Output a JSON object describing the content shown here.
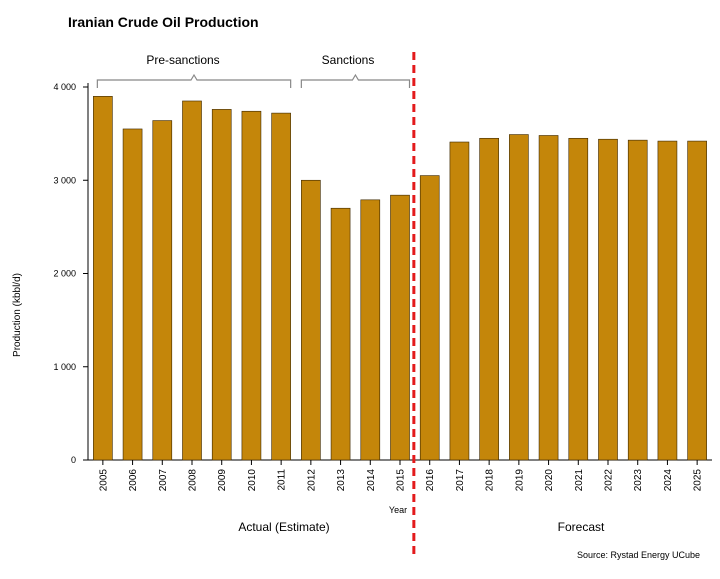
{
  "chart_data": {
    "type": "bar",
    "title": "Iranian Crude Oil Production",
    "ylabel": "Production (kbbl/d)",
    "xlabel": "Year",
    "ylim": [
      0,
      4000
    ],
    "yticks": [
      0,
      1000,
      2000,
      3000,
      4000
    ],
    "ytick_labels": [
      "0",
      "1 000",
      "2 000",
      "3 000",
      "4 000"
    ],
    "categories": [
      "2005",
      "2006",
      "2007",
      "2008",
      "2009",
      "2010",
      "2011",
      "2012",
      "2013",
      "2014",
      "2015",
      "2016",
      "2017",
      "2018",
      "2019",
      "2020",
      "2021",
      "2022",
      "2023",
      "2024",
      "2025"
    ],
    "values": [
      3900,
      3550,
      3640,
      3850,
      3760,
      3740,
      3720,
      3000,
      2700,
      2790,
      2840,
      3050,
      3410,
      3450,
      3490,
      3480,
      3450,
      3440,
      3430,
      3420,
      3420
    ],
    "bar_color": "#c4860a",
    "divider_color": "#e31a1c",
    "annotations": {
      "pre_sanctions": "Pre-sanctions",
      "sanctions": "Sanctions",
      "actual": "Actual (Estimate)",
      "forecast": "Forecast"
    },
    "source": "Source: Rystad Energy UCube",
    "grid": false
  }
}
